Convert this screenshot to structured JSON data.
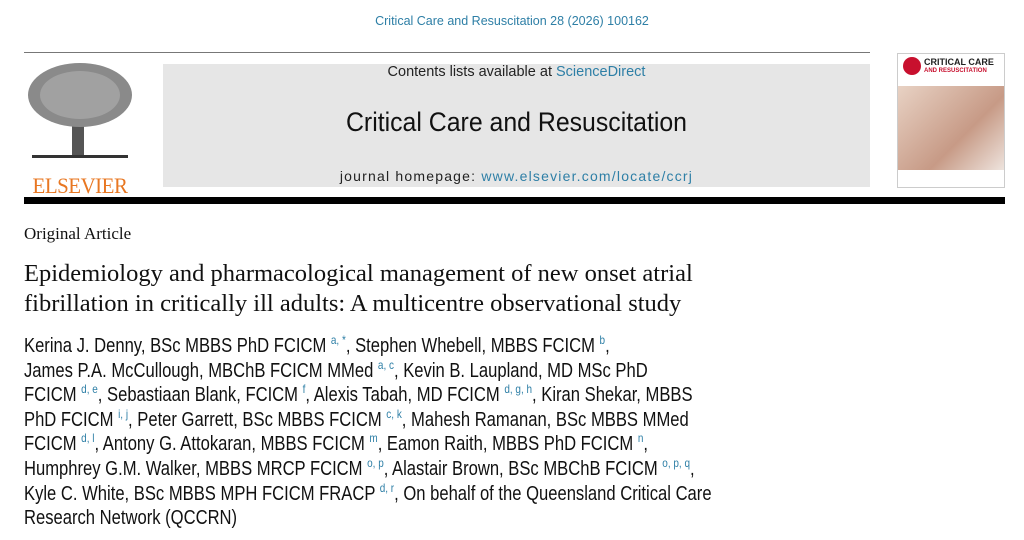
{
  "citation": "Critical Care and Resuscitation 28 (2026) 100162",
  "publisher": "ELSEVIER",
  "masthead": {
    "contents_prefix": "Contents lists available at ",
    "contents_link": "ScienceDirect",
    "journal": "Critical Care and Resuscitation",
    "homepage_prefix": "journal homepage: ",
    "homepage_link": "www.elsevier.com/locate/ccrj"
  },
  "cover": {
    "title": "CRITICAL CARE",
    "subtitle": "AND RESUSCITATION"
  },
  "article_type": "Original Article",
  "title_lines": [
    "Epidemiology and pharmacological management of new onset atrial",
    "fibrillation in critically ill adults: A multicentre observational study"
  ],
  "author_lines": [
    [
      {
        "t": "Kerina J. Denny, BSc MBBS PhD FCICM ",
        "s": "a, *"
      },
      {
        "t": ", Stephen Whebell, MBBS FCICM ",
        "s": "b"
      },
      {
        "t": ",",
        "s": ""
      }
    ],
    [
      {
        "t": "James P.A. McCullough, MBChB FCICM MMed ",
        "s": "a, c"
      },
      {
        "t": ", Kevin B. Laupland, MD MSc PhD",
        "s": ""
      }
    ],
    [
      {
        "t": "FCICM ",
        "s": "d, e"
      },
      {
        "t": ", Sebastiaan Blank, FCICM ",
        "s": "f"
      },
      {
        "t": ", Alexis Tabah, MD FCICM ",
        "s": "d, g, h"
      },
      {
        "t": ", Kiran Shekar, MBBS",
        "s": ""
      }
    ],
    [
      {
        "t": "PhD FCICM ",
        "s": "i, j"
      },
      {
        "t": ", Peter Garrett, BSc MBBS FCICM ",
        "s": "c, k"
      },
      {
        "t": ", Mahesh Ramanan, BSc MBBS MMed",
        "s": ""
      }
    ],
    [
      {
        "t": "FCICM ",
        "s": "d, l"
      },
      {
        "t": ", Antony G. Attokaran, MBBS FCICM ",
        "s": "m"
      },
      {
        "t": ", Eamon Raith, MBBS PhD FCICM ",
        "s": "n"
      },
      {
        "t": ",",
        "s": ""
      }
    ],
    [
      {
        "t": "Humphrey G.M. Walker, MBBS MRCP FCICM ",
        "s": "o, p"
      },
      {
        "t": ", Alastair Brown, BSc MBChB FCICM ",
        "s": "o, p, q"
      },
      {
        "t": ",",
        "s": ""
      }
    ],
    [
      {
        "t": "Kyle C. White, BSc MBBS MPH FCICM FRACP ",
        "s": "d, r"
      },
      {
        "t": ", On behalf of the Queensland Critical Care",
        "s": ""
      }
    ],
    [
      {
        "t": "Research Network (QCCRN)",
        "s": ""
      }
    ]
  ],
  "colors": {
    "link": "#2e7fa6",
    "elsevier_orange": "#e87722"
  }
}
